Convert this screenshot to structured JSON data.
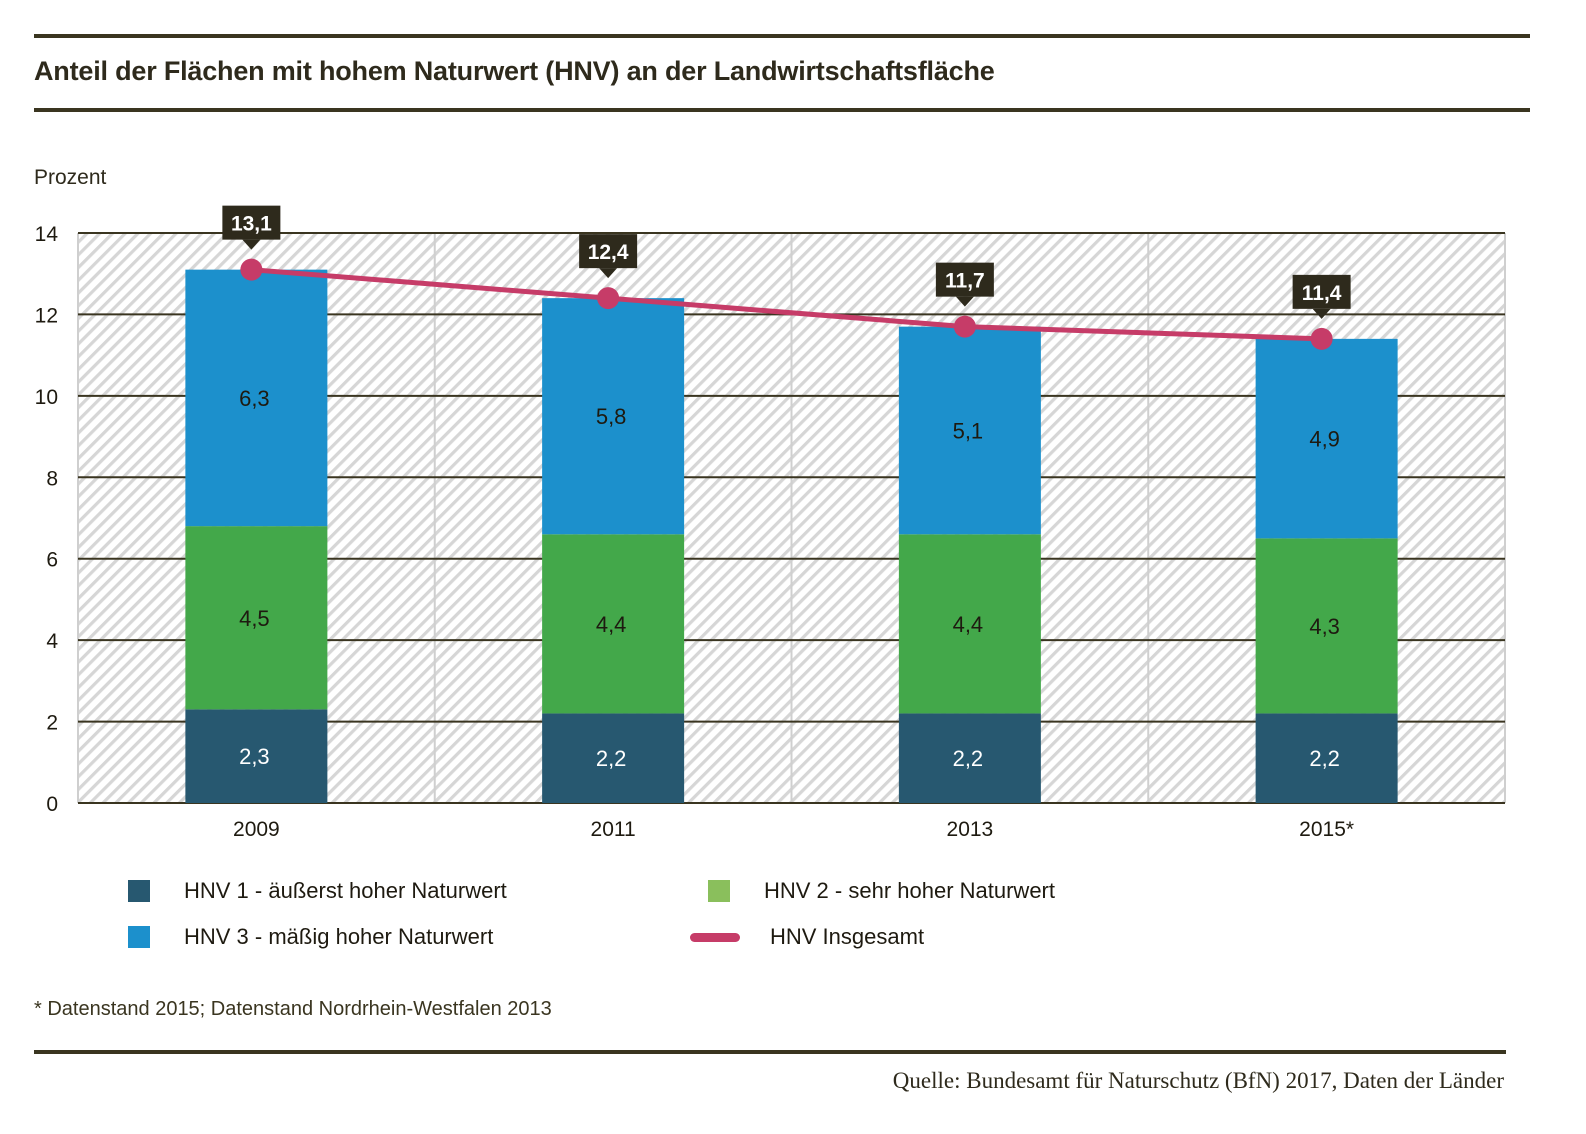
{
  "chart_data": {
    "type": "bar",
    "stacked": true,
    "title": "Anteil der Flächen mit hohem Naturwert (HNV) an der Landwirtschaftsfläche",
    "ylabel": "Prozent",
    "xlabel": "",
    "ylim": [
      0,
      14
    ],
    "yticks": [
      0,
      2,
      4,
      6,
      8,
      10,
      12,
      14
    ],
    "ytick_labels": [
      "0",
      "2",
      "4",
      "6",
      "8",
      "10",
      "12",
      "14"
    ],
    "grid": true,
    "categories": [
      "2009",
      "2011",
      "2013",
      "2015*"
    ],
    "series": [
      {
        "name": "HNV 1 - äußerst hoher Naturwert",
        "type": "bar",
        "color": "#275870",
        "label_color": "#ffffff",
        "values": [
          2.3,
          2.2,
          2.2,
          2.2
        ],
        "labels": [
          "2,3",
          "2,2",
          "2,2",
          "2,2"
        ]
      },
      {
        "name": "HNV 2 - sehr hoher Naturwert",
        "type": "bar",
        "color": "#43a84a",
        "legend_color": "#8abf5c",
        "label_color": "#1e1a10",
        "values": [
          4.5,
          4.4,
          4.4,
          4.3
        ],
        "labels": [
          "4,5",
          "4,4",
          "4,4",
          "4,3"
        ]
      },
      {
        "name": "HNV 3 - mäßig hoher Naturwert",
        "type": "bar",
        "color": "#1c90cc",
        "label_color": "#1e1a10",
        "values": [
          6.3,
          5.8,
          5.1,
          4.9
        ],
        "labels": [
          "6,3",
          "5,8",
          "5,1",
          "4,9"
        ]
      },
      {
        "name": "HNV Insgesamt",
        "type": "line",
        "color": "#c63c68",
        "values": [
          13.1,
          12.4,
          11.7,
          11.4
        ],
        "labels": [
          "13,1",
          "12,4",
          "11,7",
          "11,4"
        ]
      }
    ],
    "legend_position": "bottom"
  },
  "legend": [
    {
      "label": "HNV 1 - äußerst hoher Naturwert",
      "color": "#275870",
      "kind": "square"
    },
    {
      "label": "HNV 2 - sehr hoher Naturwert",
      "color": "#8abf5c",
      "kind": "square"
    },
    {
      "label": "HNV 3 - mäßig hoher Naturwert",
      "color": "#1c90cc",
      "kind": "square"
    },
    {
      "label": "HNV Insgesamt",
      "color": "#c63c68",
      "kind": "line"
    }
  ],
  "footnote": "* Datenstand 2015; Datenstand Nordrhein-Westfalen 2013",
  "source": "Quelle: Bundesamt für Naturschutz (BfN) 2017, Daten der Länder",
  "colors": {
    "text": "#2e2a1c",
    "rule": "#3a3520",
    "callout": "#2e2a1c",
    "hatch": "#d4d4d4"
  }
}
